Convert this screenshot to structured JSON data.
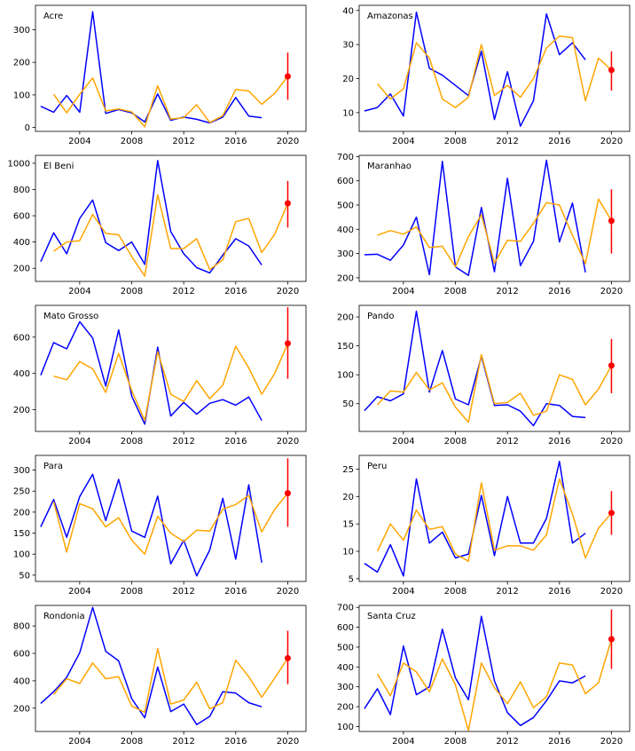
{
  "colors": {
    "observed": "#0000ff",
    "fitted": "#ffa500",
    "forecast": "#ff0000"
  },
  "chart_data": [
    {
      "type": "line",
      "title": "Acre",
      "ylim": [
        -12,
        375
      ],
      "yticks": [
        0,
        100,
        200,
        300
      ],
      "xticks": [
        2004,
        2008,
        2012,
        2016,
        2020
      ],
      "series": [
        {
          "x": [
            2001,
            2002,
            2003,
            2004,
            2005,
            2006,
            2007,
            2008,
            2009,
            2010,
            2011,
            2012,
            2013,
            2014,
            2015,
            2016,
            2017,
            2018
          ],
          "values": [
            65,
            47,
            98,
            47,
            355,
            43,
            55,
            45,
            17,
            103,
            22,
            32,
            25,
            14,
            32,
            92,
            35,
            30
          ]
        },
        {
          "x": [
            2002,
            2003,
            2004,
            2005,
            2006,
            2007,
            2008,
            2009,
            2010,
            2011,
            2012,
            2013,
            2014,
            2015,
            2016,
            2017,
            2018,
            2019,
            2020
          ],
          "values": [
            102,
            45,
            102,
            152,
            51,
            57,
            48,
            2,
            128,
            26,
            30,
            70,
            15,
            36,
            117,
            112,
            71,
            105,
            157
          ]
        }
      ],
      "forecast": {
        "x": 2020,
        "y": 157,
        "low": 85,
        "high": 230
      }
    },
    {
      "type": "line",
      "title": "Amazonas",
      "ylim": [
        4.5,
        41.5
      ],
      "yticks": [
        10,
        20,
        30,
        40
      ],
      "xticks": [
        2004,
        2008,
        2012,
        2016,
        2020
      ],
      "series": [
        {
          "x": [
            2001,
            2002,
            2003,
            2004,
            2005,
            2006,
            2007,
            2008,
            2009,
            2010,
            2011,
            2012,
            2013,
            2014,
            2015,
            2016,
            2017,
            2018
          ],
          "values": [
            10.5,
            11.5,
            15.5,
            9,
            39.5,
            23,
            21,
            18,
            15,
            28,
            8,
            22,
            6,
            13.5,
            39,
            27,
            30.5,
            25.5
          ]
        },
        {
          "x": [
            2002,
            2003,
            2004,
            2005,
            2006,
            2007,
            2008,
            2009,
            2010,
            2011,
            2012,
            2013,
            2014,
            2015,
            2016,
            2017,
            2018,
            2019,
            2020
          ],
          "values": [
            18.5,
            14,
            17,
            30.5,
            26,
            14,
            11.5,
            14.5,
            30,
            15,
            18,
            14.5,
            20,
            29,
            32.5,
            32,
            13.5,
            26,
            22.5
          ]
        }
      ],
      "forecast": {
        "x": 2020,
        "y": 22.5,
        "low": 16.5,
        "high": 28
      }
    },
    {
      "type": "line",
      "title": "El Beni",
      "ylim": [
        100,
        1060
      ],
      "yticks": [
        200,
        400,
        600,
        800,
        1000
      ],
      "xticks": [
        2004,
        2008,
        2012,
        2016,
        2020
      ],
      "series": [
        {
          "x": [
            2001,
            2002,
            2003,
            2004,
            2005,
            2006,
            2007,
            2008,
            2009,
            2010,
            2011,
            2012,
            2013,
            2014,
            2015,
            2016,
            2017,
            2018
          ],
          "values": [
            250,
            470,
            310,
            580,
            720,
            395,
            335,
            400,
            230,
            1020,
            480,
            310,
            205,
            165,
            300,
            425,
            370,
            225
          ]
        },
        {
          "x": [
            2002,
            2003,
            2004,
            2005,
            2006,
            2007,
            2008,
            2009,
            2010,
            2011,
            2012,
            2013,
            2014,
            2015,
            2016,
            2017,
            2018,
            2019,
            2020
          ],
          "values": [
            330,
            400,
            410,
            610,
            465,
            455,
            290,
            140,
            760,
            350,
            350,
            425,
            190,
            265,
            555,
            580,
            320,
            460,
            695
          ]
        }
      ],
      "forecast": {
        "x": 2020,
        "y": 695,
        "low": 510,
        "high": 865
      }
    },
    {
      "type": "line",
      "title": "Maranhao",
      "ylim": [
        185,
        705
      ],
      "yticks": [
        200,
        300,
        400,
        500,
        600,
        700
      ],
      "xticks": [
        2004,
        2008,
        2012,
        2016,
        2020
      ],
      "series": [
        {
          "x": [
            2001,
            2002,
            2003,
            2004,
            2005,
            2006,
            2007,
            2008,
            2009,
            2010,
            2011,
            2012,
            2013,
            2014,
            2015,
            2016,
            2017,
            2018
          ],
          "values": [
            295,
            297,
            272,
            335,
            450,
            213,
            680,
            245,
            210,
            490,
            225,
            610,
            250,
            350,
            685,
            348,
            508,
            222
          ]
        },
        {
          "x": [
            2002,
            2003,
            2004,
            2005,
            2006,
            2007,
            2008,
            2009,
            2010,
            2011,
            2012,
            2013,
            2014,
            2015,
            2016,
            2017,
            2018,
            2019,
            2020
          ],
          "values": [
            375,
            395,
            380,
            410,
            325,
            330,
            245,
            370,
            460,
            260,
            355,
            350,
            425,
            510,
            500,
            375,
            258,
            525,
            435
          ]
        }
      ],
      "forecast": {
        "x": 2020,
        "y": 435,
        "low": 300,
        "high": 565
      }
    },
    {
      "type": "line",
      "title": "Mato Grosso",
      "ylim": [
        80,
        775
      ],
      "yticks": [
        200,
        400,
        600
      ],
      "xticks": [
        2004,
        2008,
        2012,
        2016,
        2020
      ],
      "series": [
        {
          "x": [
            2001,
            2002,
            2003,
            2004,
            2005,
            2006,
            2007,
            2008,
            2009,
            2010,
            2011,
            2012,
            2013,
            2014,
            2015,
            2016,
            2017,
            2018
          ],
          "values": [
            390,
            570,
            535,
            685,
            595,
            330,
            640,
            275,
            120,
            545,
            165,
            240,
            175,
            235,
            255,
            225,
            270,
            140
          ]
        },
        {
          "x": [
            2002,
            2003,
            2004,
            2005,
            2006,
            2007,
            2008,
            2009,
            2010,
            2011,
            2012,
            2013,
            2014,
            2015,
            2016,
            2017,
            2018,
            2019,
            2020
          ],
          "values": [
            385,
            365,
            465,
            425,
            295,
            510,
            305,
            140,
            520,
            285,
            245,
            360,
            260,
            335,
            550,
            430,
            285,
            400,
            565
          ]
        }
      ],
      "forecast": {
        "x": 2020,
        "y": 565,
        "low": 370,
        "high": 765
      }
    },
    {
      "type": "line",
      "title": "Pando",
      "ylim": [
        2,
        220
      ],
      "yticks": [
        50,
        100,
        150,
        200
      ],
      "xticks": [
        2004,
        2008,
        2012,
        2016,
        2020
      ],
      "series": [
        {
          "x": [
            2001,
            2002,
            2003,
            2004,
            2005,
            2006,
            2007,
            2008,
            2009,
            2010,
            2011,
            2012,
            2013,
            2014,
            2015,
            2016,
            2017,
            2018
          ],
          "values": [
            38,
            62,
            55,
            67,
            210,
            70,
            142,
            58,
            48,
            132,
            47,
            48,
            37,
            12,
            50,
            47,
            28,
            26
          ]
        },
        {
          "x": [
            2002,
            2003,
            2004,
            2005,
            2006,
            2007,
            2008,
            2009,
            2010,
            2011,
            2012,
            2013,
            2014,
            2015,
            2016,
            2017,
            2018,
            2019,
            2020
          ],
          "values": [
            48,
            72,
            70,
            104,
            74,
            86,
            44,
            18,
            135,
            50,
            52,
            68,
            30,
            37,
            100,
            92,
            48,
            75,
            116
          ]
        }
      ],
      "forecast": {
        "x": 2020,
        "y": 116,
        "low": 68,
        "high": 162
      }
    },
    {
      "type": "line",
      "title": "Para",
      "ylim": [
        35,
        335
      ],
      "yticks": [
        50,
        100,
        150,
        200,
        250,
        300
      ],
      "xticks": [
        2004,
        2008,
        2012,
        2016,
        2020
      ],
      "series": [
        {
          "x": [
            2001,
            2002,
            2003,
            2004,
            2005,
            2006,
            2007,
            2008,
            2009,
            2010,
            2011,
            2012,
            2013,
            2014,
            2015,
            2016,
            2017,
            2018
          ],
          "values": [
            165,
            230,
            140,
            237,
            290,
            180,
            278,
            155,
            140,
            238,
            77,
            133,
            48,
            110,
            233,
            88,
            265,
            80
          ]
        },
        {
          "x": [
            2002,
            2003,
            2004,
            2005,
            2006,
            2007,
            2008,
            2009,
            2010,
            2011,
            2012,
            2013,
            2014,
            2015,
            2016,
            2017,
            2018,
            2019,
            2020
          ],
          "values": [
            225,
            105,
            220,
            208,
            165,
            187,
            133,
            100,
            190,
            150,
            130,
            157,
            155,
            207,
            218,
            240,
            153,
            207,
            245
          ]
        }
      ],
      "forecast": {
        "x": 2020,
        "y": 245,
        "low": 165,
        "high": 328
      }
    },
    {
      "type": "line",
      "title": "Peru",
      "ylim": [
        4.5,
        27.5
      ],
      "yticks": [
        5,
        10,
        15,
        20,
        25
      ],
      "xticks": [
        2004,
        2008,
        2012,
        2016,
        2020
      ],
      "series": [
        {
          "x": [
            2001,
            2002,
            2003,
            2004,
            2005,
            2006,
            2007,
            2008,
            2009,
            2010,
            2011,
            2012,
            2013,
            2014,
            2015,
            2016,
            2017,
            2018
          ],
          "values": [
            7.8,
            6.2,
            11.2,
            5.5,
            23.2,
            11.5,
            13.5,
            8.8,
            9.5,
            20.2,
            9.2,
            20,
            11.5,
            11.5,
            16,
            26.4,
            11.5,
            13.3
          ]
        },
        {
          "x": [
            2002,
            2003,
            2004,
            2005,
            2006,
            2007,
            2008,
            2009,
            2010,
            2011,
            2012,
            2013,
            2014,
            2015,
            2016,
            2017,
            2018,
            2019,
            2020
          ],
          "values": [
            10,
            15,
            12,
            17.5,
            14,
            14.5,
            9.5,
            8.2,
            22.5,
            10.2,
            11,
            11,
            10.2,
            13,
            23.2,
            16.8,
            8.8,
            14.2,
            17
          ]
        }
      ],
      "forecast": {
        "x": 2020,
        "y": 17,
        "low": 13,
        "high": 21
      }
    },
    {
      "type": "line",
      "title": "Rondonia",
      "ylim": [
        30,
        950
      ],
      "yticks": [
        200,
        400,
        600,
        800
      ],
      "xticks": [
        2004,
        2008,
        2012,
        2016,
        2020
      ],
      "series": [
        {
          "x": [
            2001,
            2002,
            2003,
            2004,
            2005,
            2006,
            2007,
            2008,
            2009,
            2010,
            2011,
            2012,
            2013,
            2014,
            2015,
            2016,
            2017,
            2018
          ],
          "values": [
            235,
            320,
            425,
            605,
            935,
            615,
            545,
            270,
            130,
            500,
            175,
            230,
            80,
            140,
            320,
            310,
            240,
            210
          ]
        },
        {
          "x": [
            2002,
            2003,
            2004,
            2005,
            2006,
            2007,
            2008,
            2009,
            2010,
            2011,
            2012,
            2013,
            2014,
            2015,
            2016,
            2017,
            2018,
            2019,
            2020
          ],
          "values": [
            300,
            415,
            380,
            530,
            415,
            430,
            215,
            170,
            635,
            230,
            260,
            390,
            195,
            240,
            550,
            430,
            280,
            420,
            565
          ]
        }
      ],
      "forecast": {
        "x": 2020,
        "y": 565,
        "low": 375,
        "high": 765
      }
    },
    {
      "type": "line",
      "title": "Santa Cruz",
      "ylim": [
        75,
        710
      ],
      "yticks": [
        100,
        200,
        300,
        400,
        500,
        600,
        700
      ],
      "xticks": [
        2004,
        2008,
        2012,
        2016,
        2020
      ],
      "series": [
        {
          "x": [
            2001,
            2002,
            2003,
            2004,
            2005,
            2006,
            2007,
            2008,
            2009,
            2010,
            2011,
            2012,
            2013,
            2014,
            2015,
            2016,
            2017,
            2018
          ],
          "values": [
            190,
            290,
            160,
            505,
            260,
            300,
            590,
            345,
            235,
            655,
            330,
            170,
            105,
            145,
            230,
            330,
            320,
            355
          ]
        },
        {
          "x": [
            2002,
            2003,
            2004,
            2005,
            2006,
            2007,
            2008,
            2009,
            2010,
            2011,
            2012,
            2013,
            2014,
            2015,
            2016,
            2017,
            2018,
            2019,
            2020
          ],
          "values": [
            365,
            255,
            420,
            375,
            275,
            440,
            310,
            80,
            420,
            295,
            215,
            325,
            195,
            250,
            420,
            410,
            265,
            320,
            540
          ]
        }
      ],
      "forecast": {
        "x": 2020,
        "y": 540,
        "low": 390,
        "high": 690
      }
    }
  ]
}
